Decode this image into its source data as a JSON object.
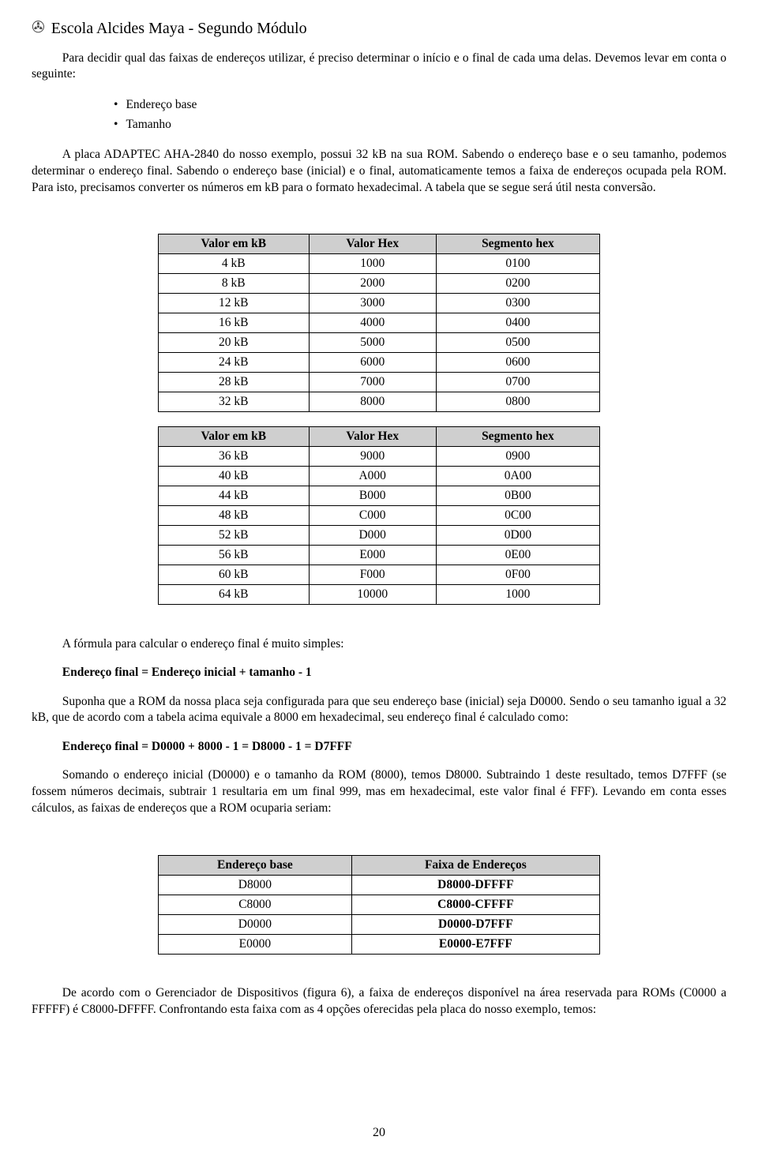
{
  "header": {
    "icon": "✇",
    "title": "Escola Alcides Maya - Segundo Módulo"
  },
  "intro": {
    "p1": "Para decidir qual das faixas de endereços utilizar, é preciso determinar o início e o final de cada uma delas. Devemos levar em conta o seguinte:",
    "bullets": [
      "Endereço base",
      "Tamanho"
    ],
    "p2": "A placa ADAPTEC AHA-2840 do nosso exemplo, possui 32 kB na sua ROM. Sabendo o endereço base e o seu tamanho, podemos determinar o endereço final. Sabendo o endereço base (inicial) e o final, automaticamente temos a faixa de endereços ocupada pela ROM. Para isto, precisamos converter os números em kB para o formato hexadecimal. A tabela que se segue será útil nesta conversão."
  },
  "table1": {
    "headers": [
      "Valor em kB",
      "Valor Hex",
      "Segmento hex"
    ],
    "rows": [
      [
        "4 kB",
        "1000",
        "0100"
      ],
      [
        "8 kB",
        "2000",
        "0200"
      ],
      [
        "12 kB",
        "3000",
        "0300"
      ],
      [
        "16 kB",
        "4000",
        "0400"
      ],
      [
        "20 kB",
        "5000",
        "0500"
      ],
      [
        "24 kB",
        "6000",
        "0600"
      ],
      [
        "28 kB",
        "7000",
        "0700"
      ],
      [
        "32 kB",
        "8000",
        "0800"
      ]
    ]
  },
  "table2": {
    "headers": [
      "Valor em kB",
      "Valor Hex",
      "Segmento hex"
    ],
    "rows": [
      [
        "36 kB",
        "9000",
        "0900"
      ],
      [
        "40 kB",
        "A000",
        "0A00"
      ],
      [
        "44 kB",
        "B000",
        "0B00"
      ],
      [
        "48 kB",
        "C000",
        "0C00"
      ],
      [
        "52 kB",
        "D000",
        "0D00"
      ],
      [
        "56 kB",
        "E000",
        "0E00"
      ],
      [
        "60 kB",
        "F000",
        "0F00"
      ],
      [
        "64 kB",
        "10000",
        "1000"
      ]
    ]
  },
  "formula": {
    "p1": "A fórmula para calcular o endereço final é muito simples:",
    "eq1": "Endereço final = Endereço inicial + tamanho - 1",
    "p2": "Suponha que a ROM da nossa placa seja configurada para que seu endereço base (inicial) seja D0000. Sendo o seu tamanho igual a 32 kB, que de acordo com a tabela acima equivale a 8000 em hexadecimal, seu endereço final é calculado como:",
    "eq2": "Endereço final = D0000 + 8000 - 1 = D8000 - 1 = D7FFF",
    "p3": "Somando o endereço inicial (D0000) e o tamanho da ROM (8000), temos D8000. Subtraindo 1 deste resultado, temos D7FFF (se fossem números decimais, subtrair 1 resultaria em um final 999, mas em hexadecimal, este valor final é FFF). Levando em conta esses cálculos, as faixas de endereços que a ROM ocuparia seriam:"
  },
  "table3": {
    "headers": [
      "Endereço base",
      "Faixa de Endereços"
    ],
    "rows": [
      [
        "D8000",
        "D8000-DFFFF"
      ],
      [
        "C8000",
        "C8000-CFFFF"
      ],
      [
        "D0000",
        "D0000-D7FFF"
      ],
      [
        "E0000",
        "E0000-E7FFF"
      ]
    ]
  },
  "closing": {
    "p1": "De acordo com o Gerenciador de Dispositivos (figura 6), a faixa de endereços disponível na área reservada para ROMs (C0000 a FFFFF) é C8000-DFFFF. Confrontando esta faixa com as 4 opções oferecidas pela placa do nosso exemplo, temos:"
  },
  "page_number": "20"
}
